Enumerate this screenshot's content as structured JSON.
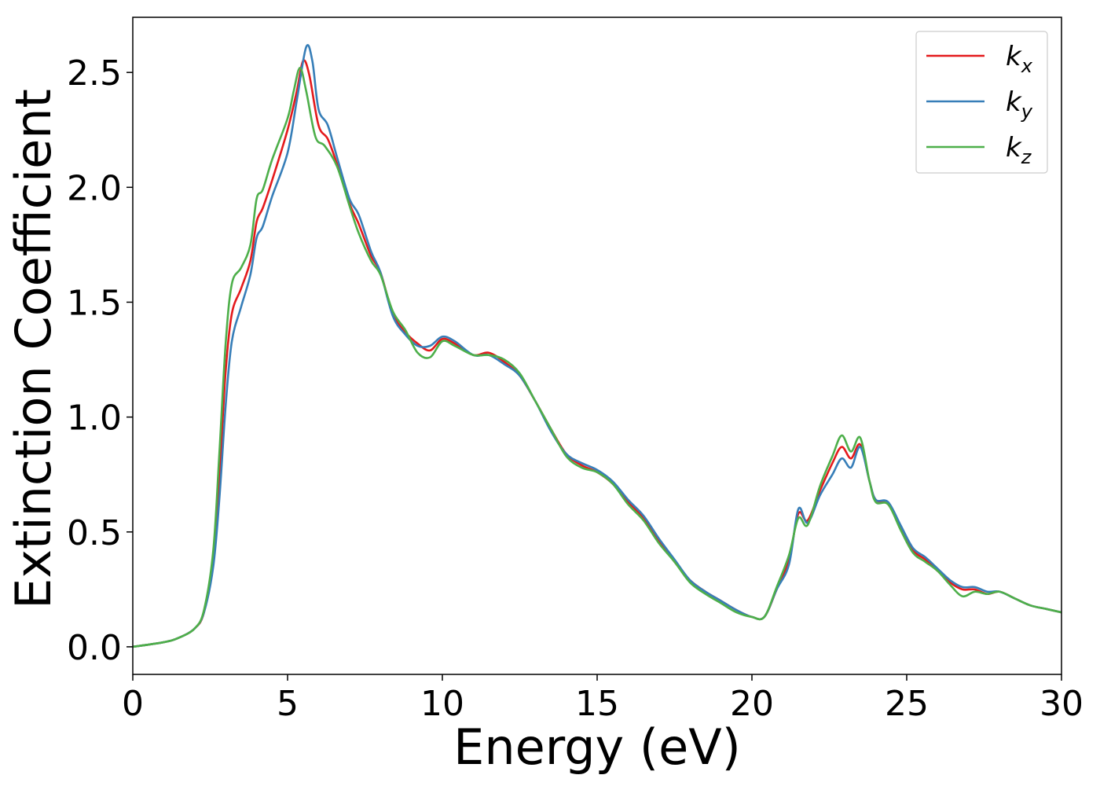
{
  "chart_data": {
    "type": "line",
    "title": "",
    "xlabel": "Energy (eV)",
    "ylabel": "Extinction Coefficient",
    "xlim": [
      0,
      30
    ],
    "ylim": [
      -0.12,
      2.74
    ],
    "x_ticks": [
      0,
      5,
      10,
      15,
      20,
      25,
      30
    ],
    "x_tick_labels": [
      "0",
      "5",
      "10",
      "15",
      "20",
      "25",
      "30"
    ],
    "y_ticks": [
      0.0,
      0.5,
      1.0,
      1.5,
      2.0,
      2.5
    ],
    "y_tick_labels": [
      "0.0",
      "0.5",
      "1.0",
      "1.5",
      "2.0",
      "2.5"
    ],
    "grid": false,
    "legend": "top-right",
    "series": [
      {
        "name": "k_x",
        "legend_main": "k",
        "legend_sub": "x",
        "color": "#e41a1c",
        "points": [
          [
            0,
            0
          ],
          [
            1,
            0.02
          ],
          [
            1.5,
            0.04
          ],
          [
            2,
            0.08
          ],
          [
            2.3,
            0.15
          ],
          [
            2.6,
            0.38
          ],
          [
            2.8,
            0.75
          ],
          [
            3.0,
            1.2
          ],
          [
            3.2,
            1.45
          ],
          [
            3.5,
            1.56
          ],
          [
            3.8,
            1.68
          ],
          [
            4.0,
            1.85
          ],
          [
            4.2,
            1.91
          ],
          [
            4.5,
            2.03
          ],
          [
            5.0,
            2.25
          ],
          [
            5.3,
            2.42
          ],
          [
            5.5,
            2.55
          ],
          [
            5.7,
            2.49
          ],
          [
            6.0,
            2.27
          ],
          [
            6.3,
            2.21
          ],
          [
            6.6,
            2.1
          ],
          [
            7.0,
            1.93
          ],
          [
            7.3,
            1.84
          ],
          [
            7.7,
            1.7
          ],
          [
            8.0,
            1.63
          ],
          [
            8.4,
            1.45
          ],
          [
            8.8,
            1.37
          ],
          [
            9.2,
            1.32
          ],
          [
            9.6,
            1.29
          ],
          [
            10.0,
            1.34
          ],
          [
            10.4,
            1.32
          ],
          [
            11.0,
            1.27
          ],
          [
            11.5,
            1.28
          ],
          [
            12.0,
            1.24
          ],
          [
            12.5,
            1.18
          ],
          [
            13.0,
            1.07
          ],
          [
            13.5,
            0.95
          ],
          [
            14.0,
            0.84
          ],
          [
            14.5,
            0.79
          ],
          [
            15.0,
            0.76
          ],
          [
            15.5,
            0.71
          ],
          [
            16.0,
            0.63
          ],
          [
            16.5,
            0.56
          ],
          [
            17.0,
            0.46
          ],
          [
            17.5,
            0.37
          ],
          [
            18.0,
            0.29
          ],
          [
            18.5,
            0.24
          ],
          [
            19.0,
            0.2
          ],
          [
            19.5,
            0.16
          ],
          [
            20.0,
            0.13
          ],
          [
            20.4,
            0.13
          ],
          [
            20.8,
            0.25
          ],
          [
            21.2,
            0.38
          ],
          [
            21.5,
            0.58
          ],
          [
            21.8,
            0.55
          ],
          [
            22.2,
            0.68
          ],
          [
            22.6,
            0.8
          ],
          [
            22.9,
            0.87
          ],
          [
            23.2,
            0.82
          ],
          [
            23.5,
            0.88
          ],
          [
            23.8,
            0.72
          ],
          [
            24.0,
            0.64
          ],
          [
            24.4,
            0.62
          ],
          [
            24.8,
            0.52
          ],
          [
            25.2,
            0.42
          ],
          [
            25.6,
            0.38
          ],
          [
            26.0,
            0.33
          ],
          [
            26.4,
            0.28
          ],
          [
            26.8,
            0.25
          ],
          [
            27.2,
            0.25
          ],
          [
            27.6,
            0.23
          ],
          [
            28.0,
            0.24
          ],
          [
            28.5,
            0.21
          ],
          [
            29.0,
            0.18
          ],
          [
            29.5,
            0.165
          ],
          [
            30.0,
            0.15
          ]
        ]
      },
      {
        "name": "k_y",
        "legend_main": "k",
        "legend_sub": "y",
        "color": "#377eb8",
        "points": [
          [
            0,
            0
          ],
          [
            1,
            0.02
          ],
          [
            1.5,
            0.04
          ],
          [
            2,
            0.08
          ],
          [
            2.3,
            0.15
          ],
          [
            2.6,
            0.35
          ],
          [
            2.8,
            0.65
          ],
          [
            3.0,
            1.05
          ],
          [
            3.2,
            1.33
          ],
          [
            3.5,
            1.48
          ],
          [
            3.8,
            1.62
          ],
          [
            4.0,
            1.78
          ],
          [
            4.2,
            1.83
          ],
          [
            4.5,
            1.96
          ],
          [
            5.0,
            2.15
          ],
          [
            5.3,
            2.38
          ],
          [
            5.6,
            2.61
          ],
          [
            5.8,
            2.55
          ],
          [
            6.0,
            2.34
          ],
          [
            6.3,
            2.27
          ],
          [
            6.6,
            2.13
          ],
          [
            7.0,
            1.95
          ],
          [
            7.3,
            1.88
          ],
          [
            7.7,
            1.72
          ],
          [
            8.0,
            1.63
          ],
          [
            8.4,
            1.44
          ],
          [
            8.8,
            1.36
          ],
          [
            9.2,
            1.31
          ],
          [
            9.6,
            1.31
          ],
          [
            10.0,
            1.35
          ],
          [
            10.4,
            1.33
          ],
          [
            11.0,
            1.27
          ],
          [
            11.5,
            1.27
          ],
          [
            12.0,
            1.23
          ],
          [
            12.5,
            1.18
          ],
          [
            13.0,
            1.07
          ],
          [
            13.5,
            0.94
          ],
          [
            14.0,
            0.84
          ],
          [
            14.5,
            0.8
          ],
          [
            15.0,
            0.77
          ],
          [
            15.5,
            0.72
          ],
          [
            16.0,
            0.64
          ],
          [
            16.5,
            0.57
          ],
          [
            17.0,
            0.47
          ],
          [
            17.5,
            0.38
          ],
          [
            18.0,
            0.29
          ],
          [
            18.5,
            0.24
          ],
          [
            19.0,
            0.2
          ],
          [
            19.5,
            0.16
          ],
          [
            20.0,
            0.13
          ],
          [
            20.4,
            0.13
          ],
          [
            20.8,
            0.25
          ],
          [
            21.2,
            0.36
          ],
          [
            21.5,
            0.6
          ],
          [
            21.8,
            0.54
          ],
          [
            22.2,
            0.66
          ],
          [
            22.6,
            0.75
          ],
          [
            22.9,
            0.82
          ],
          [
            23.2,
            0.78
          ],
          [
            23.5,
            0.87
          ],
          [
            23.8,
            0.72
          ],
          [
            24.0,
            0.64
          ],
          [
            24.4,
            0.63
          ],
          [
            24.8,
            0.53
          ],
          [
            25.2,
            0.43
          ],
          [
            25.6,
            0.39
          ],
          [
            26.0,
            0.34
          ],
          [
            26.4,
            0.29
          ],
          [
            26.8,
            0.26
          ],
          [
            27.2,
            0.26
          ],
          [
            27.6,
            0.24
          ],
          [
            28.0,
            0.24
          ],
          [
            28.5,
            0.21
          ],
          [
            29.0,
            0.18
          ],
          [
            29.5,
            0.165
          ],
          [
            30.0,
            0.15
          ]
        ]
      },
      {
        "name": "k_z",
        "legend_main": "k",
        "legend_sub": "z",
        "color": "#4daf4a",
        "points": [
          [
            0,
            0
          ],
          [
            1,
            0.02
          ],
          [
            1.5,
            0.04
          ],
          [
            2,
            0.08
          ],
          [
            2.3,
            0.16
          ],
          [
            2.6,
            0.42
          ],
          [
            2.8,
            0.85
          ],
          [
            3.0,
            1.32
          ],
          [
            3.2,
            1.58
          ],
          [
            3.5,
            1.65
          ],
          [
            3.8,
            1.75
          ],
          [
            4.0,
            1.95
          ],
          [
            4.2,
            1.99
          ],
          [
            4.5,
            2.12
          ],
          [
            5.0,
            2.3
          ],
          [
            5.2,
            2.42
          ],
          [
            5.4,
            2.52
          ],
          [
            5.6,
            2.42
          ],
          [
            5.9,
            2.22
          ],
          [
            6.2,
            2.18
          ],
          [
            6.6,
            2.09
          ],
          [
            7.0,
            1.92
          ],
          [
            7.3,
            1.8
          ],
          [
            7.7,
            1.68
          ],
          [
            8.0,
            1.62
          ],
          [
            8.4,
            1.46
          ],
          [
            8.8,
            1.38
          ],
          [
            9.2,
            1.28
          ],
          [
            9.6,
            1.26
          ],
          [
            10.0,
            1.33
          ],
          [
            10.4,
            1.31
          ],
          [
            11.0,
            1.27
          ],
          [
            11.5,
            1.27
          ],
          [
            12.0,
            1.25
          ],
          [
            12.5,
            1.19
          ],
          [
            13.0,
            1.07
          ],
          [
            13.5,
            0.95
          ],
          [
            14.0,
            0.83
          ],
          [
            14.5,
            0.78
          ],
          [
            15.0,
            0.76
          ],
          [
            15.5,
            0.71
          ],
          [
            16.0,
            0.62
          ],
          [
            16.5,
            0.55
          ],
          [
            17.0,
            0.45
          ],
          [
            17.5,
            0.37
          ],
          [
            18.0,
            0.28
          ],
          [
            18.5,
            0.23
          ],
          [
            19.0,
            0.19
          ],
          [
            19.5,
            0.15
          ],
          [
            20.0,
            0.13
          ],
          [
            20.4,
            0.13
          ],
          [
            20.8,
            0.26
          ],
          [
            21.2,
            0.4
          ],
          [
            21.5,
            0.56
          ],
          [
            21.8,
            0.53
          ],
          [
            22.2,
            0.7
          ],
          [
            22.6,
            0.83
          ],
          [
            22.9,
            0.92
          ],
          [
            23.2,
            0.85
          ],
          [
            23.5,
            0.91
          ],
          [
            23.8,
            0.72
          ],
          [
            24.0,
            0.63
          ],
          [
            24.4,
            0.62
          ],
          [
            24.8,
            0.51
          ],
          [
            25.2,
            0.41
          ],
          [
            25.6,
            0.37
          ],
          [
            26.0,
            0.33
          ],
          [
            26.4,
            0.27
          ],
          [
            26.8,
            0.22
          ],
          [
            27.2,
            0.24
          ],
          [
            27.6,
            0.23
          ],
          [
            28.0,
            0.24
          ],
          [
            28.5,
            0.21
          ],
          [
            29.0,
            0.18
          ],
          [
            29.5,
            0.165
          ],
          [
            30.0,
            0.15
          ]
        ]
      }
    ]
  }
}
